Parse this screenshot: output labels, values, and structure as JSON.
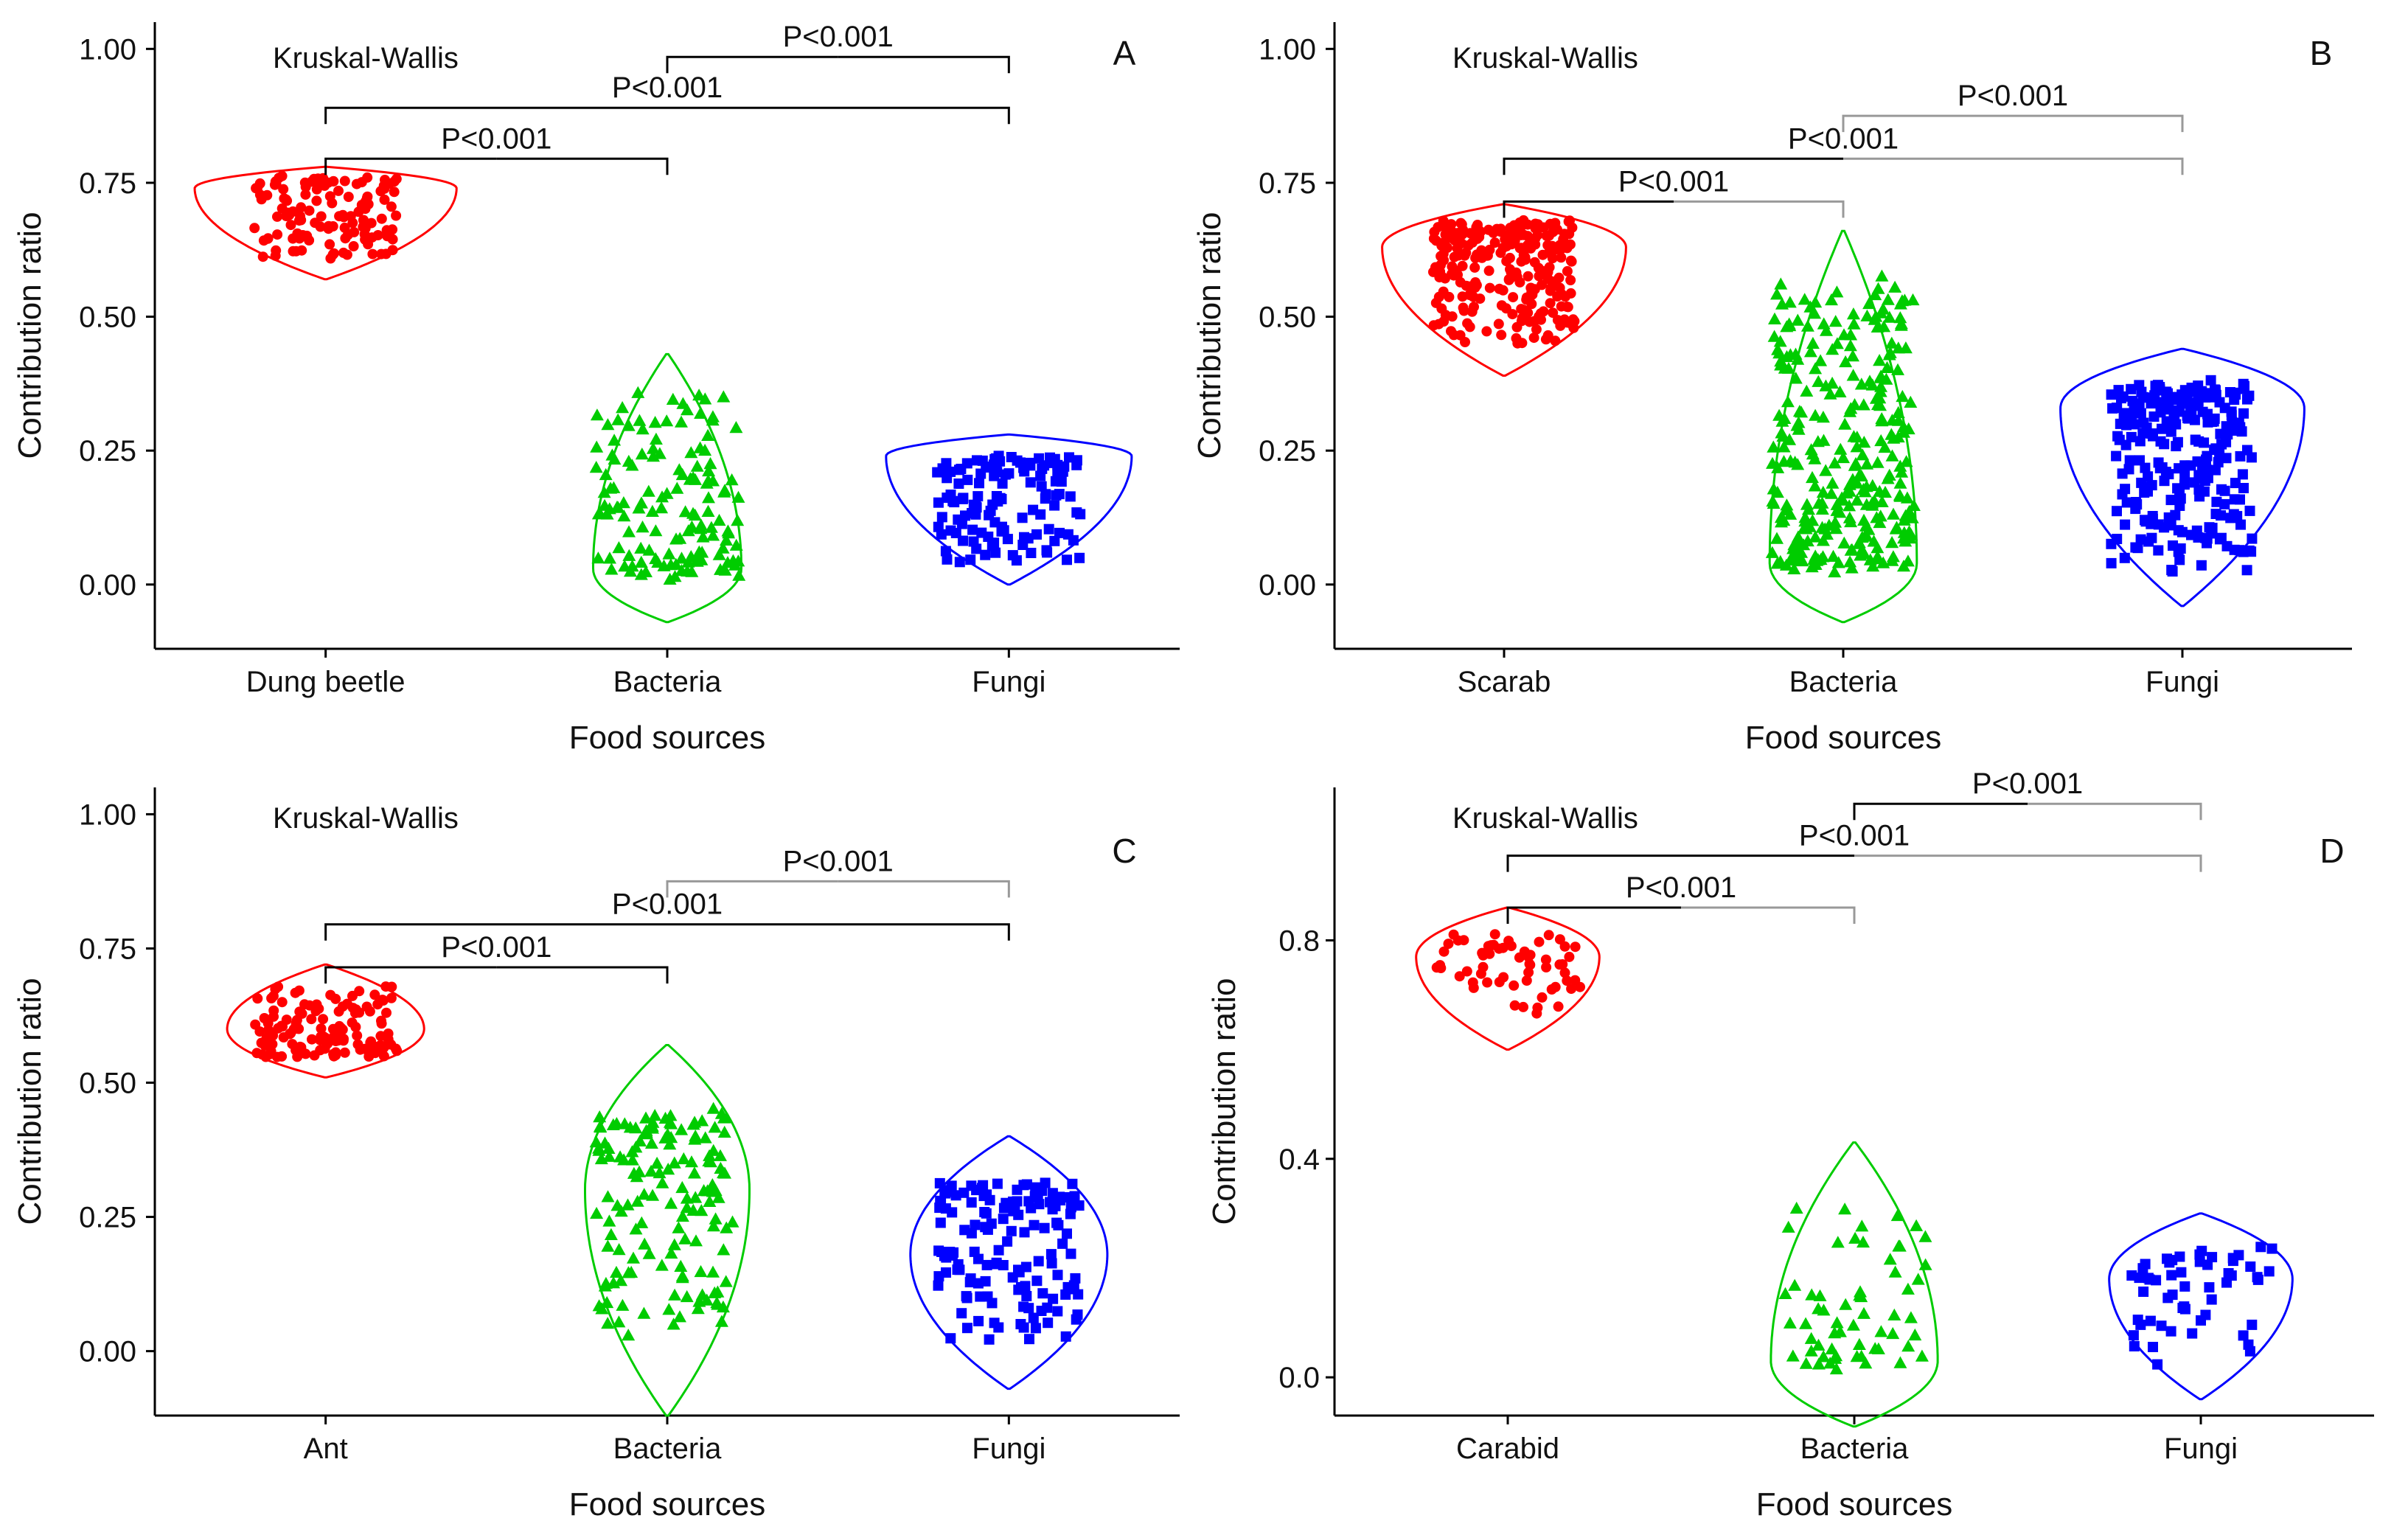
{
  "colors": {
    "red": "#ff0000",
    "green": "#00cc00",
    "blue": "#0000ff",
    "axis": "#000000",
    "bracket_dark": "#000000",
    "bracket_light": "#999999"
  },
  "chart_data": [
    {
      "panel": "A",
      "type": "violin+jitter",
      "test_label": "Kruskal-Wallis",
      "xlabel": "Food sources",
      "ylabel": "Contribution ratio",
      "ylim": [
        -0.12,
        1.05
      ],
      "yticks": [
        0,
        0.25,
        0.5,
        0.75,
        1.0
      ],
      "ytick_labels": [
        "0.00",
        "0.25",
        "0.50",
        "0.75",
        "1.00"
      ],
      "categories": [
        "Dung beetle",
        "Bacteria",
        "Fungi"
      ],
      "colors": [
        "#ff0000",
        "#00cc00",
        "#0000ff"
      ],
      "markers": [
        "circle",
        "triangle",
        "square"
      ],
      "groups": [
        {
          "name": "Dung beetle",
          "mode": 0.74,
          "vmin": 0.57,
          "vmax": 0.78,
          "pmin": 0.595,
          "pmax": 0.77,
          "n": 130,
          "spread": 0.8
        },
        {
          "name": "Bacteria",
          "mode": 0.03,
          "vmin": -0.07,
          "vmax": 0.43,
          "pmin": 0.0,
          "pmax": 0.38,
          "n": 140,
          "spread": 0.45
        },
        {
          "name": "Fungi",
          "mode": 0.24,
          "vmin": 0.0,
          "vmax": 0.28,
          "pmin": 0.03,
          "pmax": 0.25,
          "n": 130,
          "spread": 0.75
        }
      ],
      "comparisons": [
        {
          "from": 0,
          "to": 1,
          "label": "P<0.001",
          "y": 0.795,
          "style": "dark"
        },
        {
          "from": 0,
          "to": 2,
          "label": "P<0.001",
          "y": 0.89,
          "style": "dark"
        },
        {
          "from": 1,
          "to": 2,
          "label": "P<0.001",
          "y": 0.985,
          "style": "dark"
        }
      ]
    },
    {
      "panel": "B",
      "type": "violin+jitter",
      "test_label": "Kruskal-Wallis",
      "xlabel": "Food sources",
      "ylabel": "Contribution ratio",
      "ylim": [
        -0.12,
        1.05
      ],
      "yticks": [
        0,
        0.25,
        0.5,
        0.75,
        1.0
      ],
      "ytick_labels": [
        "0.00",
        "0.25",
        "0.50",
        "0.75",
        "1.00"
      ],
      "categories": [
        "Scarab",
        "Bacteria",
        "Fungi"
      ],
      "colors": [
        "#ff0000",
        "#00cc00",
        "#0000ff"
      ],
      "markers": [
        "circle",
        "triangle",
        "square"
      ],
      "groups": [
        {
          "name": "Scarab",
          "mode": 0.63,
          "vmin": 0.39,
          "vmax": 0.71,
          "pmin": 0.43,
          "pmax": 0.69,
          "n": 260,
          "spread": 0.75
        },
        {
          "name": "Bacteria",
          "mode": 0.04,
          "vmin": -0.07,
          "vmax": 0.66,
          "pmin": 0.0,
          "pmax": 0.59,
          "n": 300,
          "spread": 0.45
        },
        {
          "name": "Fungi",
          "mode": 0.33,
          "vmin": -0.04,
          "vmax": 0.44,
          "pmin": 0.0,
          "pmax": 0.39,
          "n": 260,
          "spread": 0.75
        }
      ],
      "comparisons": [
        {
          "from": 0,
          "to": 1,
          "label": "P<0.001",
          "y": 0.715,
          "style": "mixed"
        },
        {
          "from": 0,
          "to": 2,
          "label": "P<0.001",
          "y": 0.795,
          "style": "mixed"
        },
        {
          "from": 1,
          "to": 2,
          "label": "P<0.001",
          "y": 0.875,
          "style": "light"
        }
      ]
    },
    {
      "panel": "C",
      "type": "violin+jitter",
      "test_label": "Kruskal-Wallis",
      "xlabel": "Food sources",
      "ylabel": "Contribution ratio",
      "ylim": [
        -0.12,
        1.05
      ],
      "yticks": [
        0,
        0.25,
        0.5,
        0.75,
        1.0
      ],
      "ytick_labels": [
        "0.00",
        "0.25",
        "0.50",
        "0.75",
        "1.00"
      ],
      "categories": [
        "Ant",
        "Bacteria",
        "Fungi"
      ],
      "colors": [
        "#ff0000",
        "#00cc00",
        "#0000ff"
      ],
      "markers": [
        "circle",
        "triangle",
        "square"
      ],
      "groups": [
        {
          "name": "Ant",
          "mode": 0.6,
          "vmin": 0.51,
          "vmax": 0.72,
          "pmin": 0.54,
          "pmax": 0.69,
          "n": 130,
          "spread": 0.6
        },
        {
          "name": "Bacteria",
          "mode": 0.3,
          "vmin": -0.12,
          "vmax": 0.57,
          "pmin": 0.01,
          "pmax": 0.47,
          "n": 150,
          "spread": 0.5
        },
        {
          "name": "Fungi",
          "mode": 0.18,
          "vmin": -0.07,
          "vmax": 0.4,
          "pmin": 0.0,
          "pmax": 0.33,
          "n": 150,
          "spread": 0.6
        }
      ],
      "comparisons": [
        {
          "from": 0,
          "to": 1,
          "label": "P<0.001",
          "y": 0.715,
          "style": "dark"
        },
        {
          "from": 0,
          "to": 2,
          "label": "P<0.001",
          "y": 0.795,
          "style": "dark"
        },
        {
          "from": 1,
          "to": 2,
          "label": "P<0.001",
          "y": 0.875,
          "style": "light"
        }
      ]
    },
    {
      "panel": "D",
      "type": "violin+jitter",
      "test_label": "Kruskal-Wallis",
      "xlabel": "Food sources",
      "ylabel": "Contribution ratio",
      "ylim": [
        -0.07,
        1.08
      ],
      "yticks": [
        0,
        0.4,
        0.8
      ],
      "ytick_labels": [
        "0.0",
        "0.4",
        "0.8"
      ],
      "categories": [
        "Carabid",
        "Bacteria",
        "Fungi"
      ],
      "colors": [
        "#ff0000",
        "#00cc00",
        "#0000ff"
      ],
      "markers": [
        "circle",
        "triangle",
        "square"
      ],
      "groups": [
        {
          "name": "Carabid",
          "mode": 0.77,
          "vmin": 0.6,
          "vmax": 0.86,
          "pmin": 0.66,
          "pmax": 0.82,
          "n": 60,
          "spread": 0.55
        },
        {
          "name": "Bacteria",
          "mode": 0.03,
          "vmin": -0.09,
          "vmax": 0.43,
          "pmin": 0.0,
          "pmax": 0.34,
          "n": 60,
          "spread": 0.5
        },
        {
          "name": "Fungi",
          "mode": 0.18,
          "vmin": -0.04,
          "vmax": 0.3,
          "pmin": 0.01,
          "pmax": 0.25,
          "n": 55,
          "spread": 0.55
        }
      ],
      "comparisons": [
        {
          "from": 0,
          "to": 1,
          "label": "P<0.001",
          "y": 0.86,
          "style": "mixed"
        },
        {
          "from": 0,
          "to": 2,
          "label": "P<0.001",
          "y": 0.955,
          "style": "mixed"
        },
        {
          "from": 1,
          "to": 2,
          "label": "P<0.001",
          "y": 1.05,
          "style": "mixed"
        }
      ]
    }
  ]
}
